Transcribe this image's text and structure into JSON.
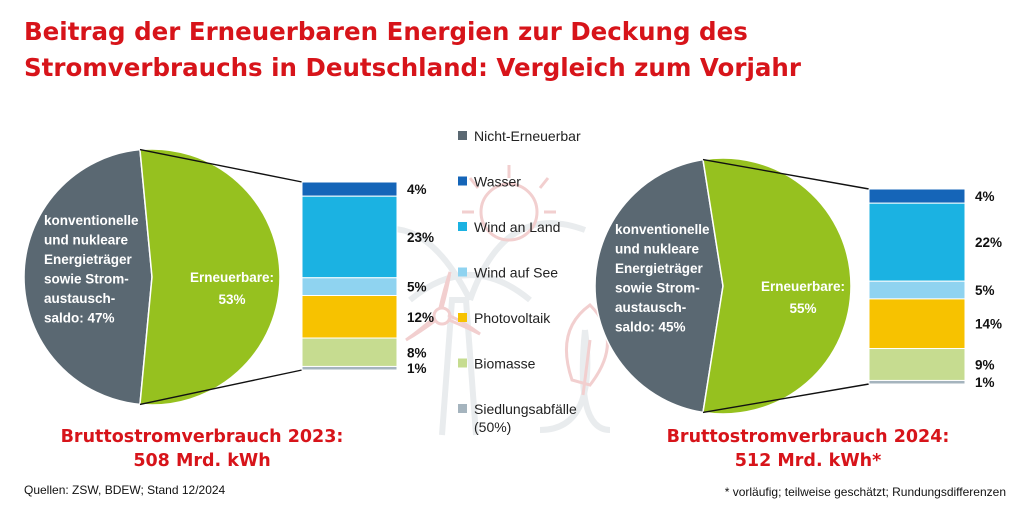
{
  "title_line1": "Beitrag der Erneuerbaren Energien zur Deckung des",
  "title_line2": "Stromverbrauchs in Deutschland: Vergleich zum Vorjahr",
  "source": "Quellen: ZSW, BDEW; Stand 12/2024",
  "footnote": "* vorläufig; teilweise geschätzt; Rundungsdifferenzen",
  "colors": {
    "Nicht-Erneuerbar": "#5a6872",
    "Wasser": "#1565b8",
    "Wind an Land": "#1bb2e2",
    "Wind auf See": "#8fd3f0",
    "Photovoltaik": "#f7c200",
    "Biomasse": "#c6dc90",
    "Siedlungsabfälle (50%)": "#a5b4be",
    "Erneuerbare": "#96c11f",
    "title": "#d7141a"
  },
  "legend": [
    {
      "label": "Nicht-Erneuerbar",
      "key": "Nicht-Erneuerbar"
    },
    {
      "label": "Wasser",
      "key": "Wasser"
    },
    {
      "label": "Wind an Land",
      "key": "Wind an Land"
    },
    {
      "label": "Wind auf See",
      "key": "Wind auf See"
    },
    {
      "label": "Photovoltaik",
      "key": "Photovoltaik"
    },
    {
      "label": "Biomasse",
      "key": "Biomasse"
    },
    {
      "label": "Siedlungsabfälle\n(50%)",
      "key": "Siedlungsabfälle (50%)"
    }
  ],
  "chart_data": [
    {
      "type": "pie",
      "year": "2023",
      "subtitle_line1": "Bruttostromverbrauch 2023:",
      "subtitle_line2": "508 Mrd. kWh",
      "slices": [
        {
          "label": "konventionelle\nund nukleare\nEnergieträger\nsowie Strom-\naustausch-\nsaldo: 47%",
          "value": 47,
          "color_key": "Nicht-Erneuerbar"
        },
        {
          "label": "Erneuerbare:\n53%",
          "value": 53,
          "color_key": "Erneuerbare"
        }
      ],
      "breakdown": [
        {
          "name": "Wasser",
          "value": 4,
          "label": "4%"
        },
        {
          "name": "Wind an Land",
          "value": 23,
          "label": "23%"
        },
        {
          "name": "Wind auf See",
          "value": 5,
          "label": "5%"
        },
        {
          "name": "Photovoltaik",
          "value": 12,
          "label": "12%"
        },
        {
          "name": "Biomasse",
          "value": 8,
          "label": "8%"
        },
        {
          "name": "Siedlungsabfälle (50%)",
          "value": 1,
          "label": "1%"
        }
      ]
    },
    {
      "type": "pie",
      "year": "2024",
      "subtitle_line1": "Bruttostromverbrauch 2024:",
      "subtitle_line2": "512 Mrd. kWh*",
      "slices": [
        {
          "label": "konventionelle\nund nukleare\nEnergieträger\nsowie Strom-\naustausch-\nsaldo: 45%",
          "value": 45,
          "color_key": "Nicht-Erneuerbar"
        },
        {
          "label": "Erneuerbare:\n55%",
          "value": 55,
          "color_key": "Erneuerbare"
        }
      ],
      "breakdown": [
        {
          "name": "Wasser",
          "value": 4,
          "label": "4%"
        },
        {
          "name": "Wind an Land",
          "value": 22,
          "label": "22%"
        },
        {
          "name": "Wind auf See",
          "value": 5,
          "label": "5%"
        },
        {
          "name": "Photovoltaik",
          "value": 14,
          "label": "14%"
        },
        {
          "name": "Biomasse",
          "value": 9,
          "label": "9%"
        },
        {
          "name": "Siedlungsabfälle (50%)",
          "value": 1,
          "label": "1%"
        }
      ]
    }
  ]
}
